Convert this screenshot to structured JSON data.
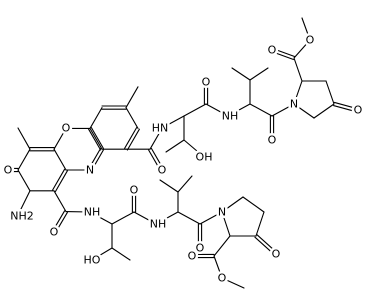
{
  "labels": [
    "O",
    "N",
    "O",
    "NH2",
    "O",
    "HN",
    "O",
    "OH",
    "NH",
    "O",
    "N",
    "O",
    "O",
    "O",
    "O",
    "NH",
    "O",
    "HO",
    "NH",
    "O",
    "N",
    "O",
    "O",
    "O"
  ]
}
